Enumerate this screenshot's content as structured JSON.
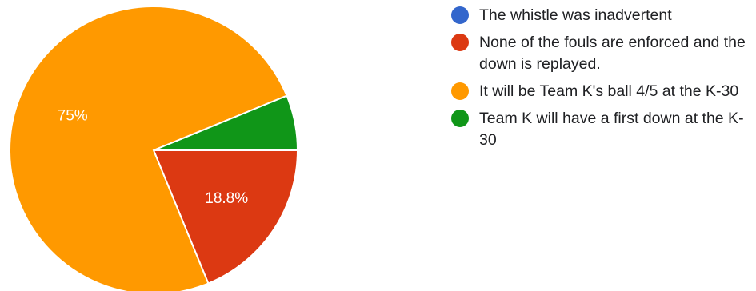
{
  "chart_data": {
    "type": "pie",
    "slices": [
      {
        "label": "The whistle was inadvertent",
        "value": 0,
        "color": "#3366cc"
      },
      {
        "label": "None of the fouls are enforced and the down is replayed.",
        "value": 18.8,
        "display": "18.8%",
        "color": "#dc3912"
      },
      {
        "label": "It will be Team K's ball 4/5 at the K-30",
        "value": 75,
        "display": "75%",
        "color": "#ff9900"
      },
      {
        "label": "Team K will have a first down at the K-30",
        "value": 6.2,
        "display": "",
        "color": "#109618"
      }
    ],
    "legend_position": "right"
  }
}
